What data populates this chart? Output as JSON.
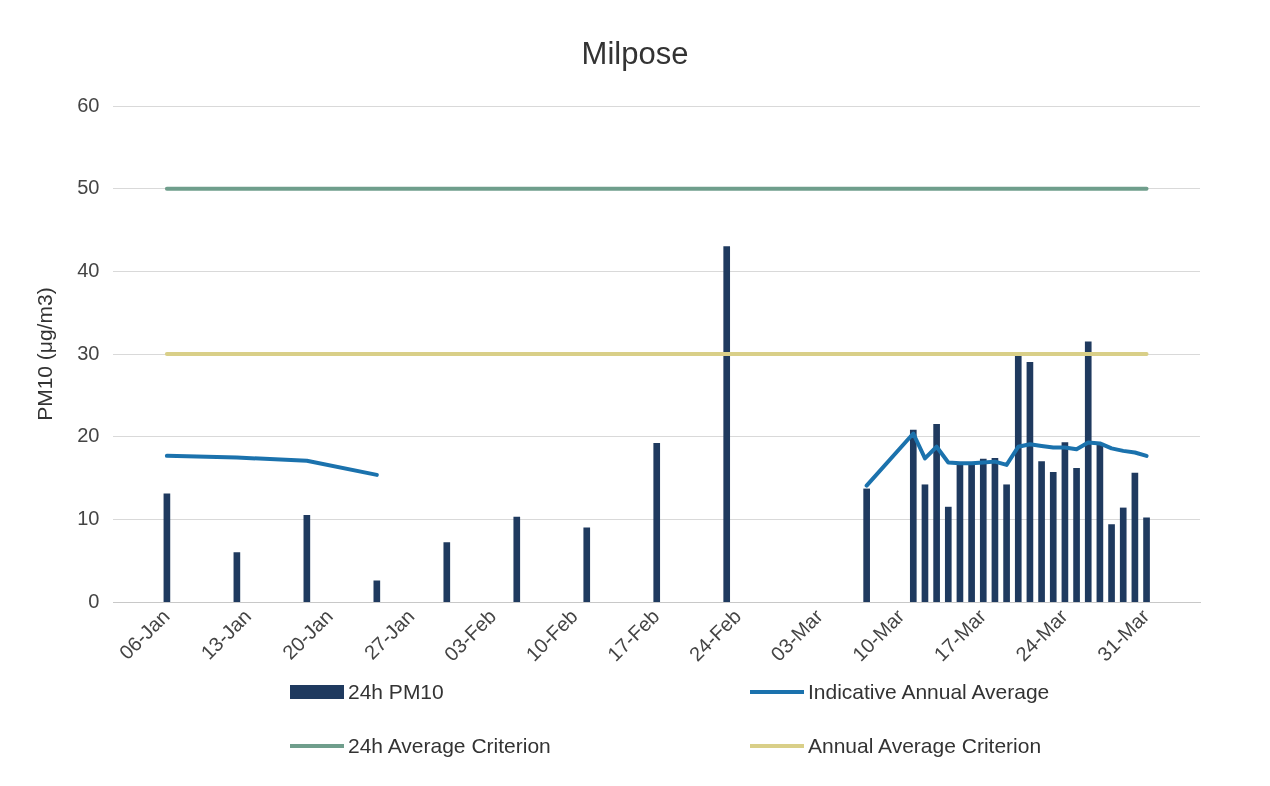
{
  "chart_data": {
    "type": "bar",
    "title": "Milpose",
    "ylabel": "PM10 (μg/m3)",
    "xlim": [
      "--01-05",
      "--04-01"
    ],
    "xticks": [
      {
        "value": "--01-06",
        "label": "06-Jan"
      },
      {
        "value": "--01-13",
        "label": "13-Jan"
      },
      {
        "value": "--01-20",
        "label": "20-Jan"
      },
      {
        "value": "--01-27",
        "label": "27-Jan"
      },
      {
        "value": "--02-03",
        "label": "03-Feb"
      },
      {
        "value": "--02-10",
        "label": "10-Feb"
      },
      {
        "value": "--02-17",
        "label": "17-Feb"
      },
      {
        "value": "--02-24",
        "label": "24-Feb"
      },
      {
        "value": "--03-03",
        "label": "03-Mar"
      },
      {
        "value": "--03-10",
        "label": "10-Mar"
      },
      {
        "value": "--03-17",
        "label": "17-Mar"
      },
      {
        "value": "--03-24",
        "label": "24-Mar"
      },
      {
        "value": "--03-31",
        "label": "31-Mar"
      }
    ],
    "ylim": [
      0,
      60
    ],
    "yticks": [
      0,
      10,
      20,
      30,
      40,
      50,
      60
    ],
    "grid": "y",
    "legend": "bottom",
    "series": [
      {
        "name": "24h PM10",
        "color": "#1f3a5f",
        "x": [
          "--01-06",
          "--01-12",
          "--01-18",
          "--01-24",
          "--01-30",
          "--02-05",
          "--02-11",
          "--02-17",
          "--02-23",
          "--03-07",
          "--03-11",
          "--03-12",
          "--03-13",
          "--03-14",
          "--03-15",
          "--03-16",
          "--03-17",
          "--03-18",
          "--03-19",
          "--03-20",
          "--03-21",
          "--03-22",
          "--03-23",
          "--03-24",
          "--03-25",
          "--03-26",
          "--03-27",
          "--03-28",
          "--03-29",
          "--03-30",
          "--03-31"
        ],
        "values": [
          13.1,
          6.0,
          10.5,
          2.6,
          7.2,
          10.3,
          9.0,
          19.2,
          43.0,
          13.7,
          20.8,
          14.2,
          21.5,
          11.5,
          16.6,
          16.6,
          17.3,
          17.4,
          14.2,
          30.0,
          29.0,
          17.0,
          15.7,
          19.3,
          16.2,
          31.5,
          19.0,
          9.4,
          11.4,
          15.6,
          10.2
        ]
      },
      {
        "name": "Indicative Annual Average",
        "type": "line",
        "color": "#1b72ad",
        "x": [
          "--01-06",
          "--01-12",
          "--01-18",
          "--01-24",
          "--02-14",
          "--03-07",
          "--03-11",
          "--03-12",
          "--03-13",
          "--03-14",
          "--03-15",
          "--03-16",
          "--03-17",
          "--03-18",
          "--03-19",
          "--03-20",
          "--03-21",
          "--03-22",
          "--03-23",
          "--03-24",
          "--03-25",
          "--03-26",
          "--03-27",
          "--03-28",
          "--03-29",
          "--03-30",
          "--03-31"
        ],
        "values": [
          17.7,
          17.5,
          17.1,
          15.4,
          null,
          14.1,
          20.4,
          17.4,
          18.8,
          16.9,
          16.8,
          16.8,
          16.9,
          17.0,
          16.6,
          18.8,
          19.1,
          18.9,
          18.7,
          18.7,
          18.5,
          19.3,
          19.2,
          18.6,
          18.3,
          18.1,
          17.7
        ]
      },
      {
        "name": "24h Average Criterion",
        "type": "line",
        "color": "#6f9e8c",
        "x": [
          "--01-06",
          "--03-31"
        ],
        "values": [
          50,
          50
        ]
      },
      {
        "name": "Annual Average Criterion",
        "type": "line",
        "color": "#d9cf88",
        "x": [
          "--01-06",
          "--03-31"
        ],
        "values": [
          30,
          30
        ]
      }
    ]
  }
}
